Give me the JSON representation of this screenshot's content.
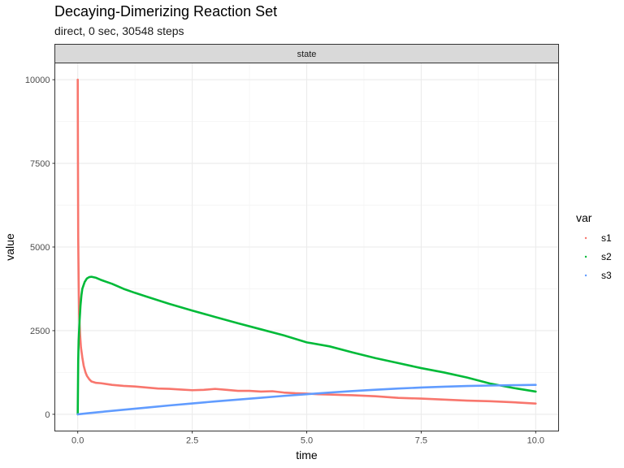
{
  "chart_data": {
    "type": "line",
    "title": "Decaying-Dimerizing Reaction Set",
    "subtitle": "direct, 0 sec, 30548 steps",
    "facet_label": "state",
    "xlabel": "time",
    "ylabel": "value",
    "xlim": [
      -0.5,
      10.5
    ],
    "ylim": [
      -500,
      10500
    ],
    "x_ticks": [
      0,
      2.5,
      5,
      7.5,
      10
    ],
    "x_tick_labels": [
      "0.0",
      "2.5",
      "5.0",
      "7.5",
      "10.0"
    ],
    "y_ticks": [
      0,
      2500,
      5000,
      7500,
      10000
    ],
    "y_tick_labels": [
      "0",
      "2500",
      "5000",
      "7500",
      "10000"
    ],
    "grid": true,
    "legend": {
      "title": "var",
      "position": "right"
    },
    "series": [
      {
        "name": "s1",
        "color": "#F8766D",
        "x": [
          0,
          0.005,
          0.01,
          0.02,
          0.03,
          0.05,
          0.07,
          0.1,
          0.13,
          0.17,
          0.2,
          0.25,
          0.3,
          0.4,
          0.5,
          0.75,
          1.0,
          1.25,
          1.5,
          1.75,
          2.0,
          2.25,
          2.5,
          2.75,
          3.0,
          3.25,
          3.5,
          3.75,
          4.0,
          4.25,
          4.5,
          4.75,
          5.0,
          5.25,
          5.5,
          5.75,
          6.0,
          6.5,
          7.0,
          7.5,
          8.0,
          8.5,
          9.0,
          9.5,
          10.0
        ],
        "y": [
          10000,
          7500,
          5300,
          4000,
          3000,
          2400,
          2000,
          1700,
          1450,
          1250,
          1150,
          1050,
          980,
          940,
          930,
          880,
          850,
          830,
          800,
          770,
          760,
          740,
          720,
          730,
          760,
          730,
          700,
          700,
          680,
          690,
          650,
          630,
          620,
          600,
          590,
          580,
          570,
          540,
          490,
          470,
          440,
          410,
          390,
          360,
          320
        ]
      },
      {
        "name": "s2",
        "color": "#00BA38",
        "x": [
          0,
          0.01,
          0.02,
          0.04,
          0.06,
          0.08,
          0.1,
          0.15,
          0.2,
          0.25,
          0.3,
          0.4,
          0.5,
          0.75,
          1.0,
          1.25,
          1.5,
          2.0,
          2.5,
          3.0,
          3.5,
          4.0,
          4.5,
          5.0,
          5.5,
          6.0,
          6.5,
          7.0,
          7.5,
          8.0,
          8.5,
          9.0,
          9.5,
          10.0
        ],
        "y": [
          0,
          1600,
          2200,
          2800,
          3250,
          3550,
          3750,
          3950,
          4060,
          4100,
          4110,
          4080,
          4020,
          3900,
          3750,
          3630,
          3520,
          3300,
          3100,
          2910,
          2720,
          2540,
          2360,
          2150,
          2030,
          1850,
          1680,
          1530,
          1380,
          1250,
          1100,
          920,
          790,
          680
        ]
      },
      {
        "name": "s3",
        "color": "#619CFF",
        "x": [
          0,
          0.25,
          0.5,
          1.0,
          1.5,
          2.0,
          2.5,
          3.0,
          3.5,
          4.0,
          4.5,
          5.0,
          5.5,
          6.0,
          6.5,
          7.0,
          7.5,
          8.0,
          8.5,
          9.0,
          9.5,
          10.0
        ],
        "y": [
          0,
          35,
          70,
          135,
          200,
          265,
          325,
          385,
          440,
          495,
          550,
          600,
          650,
          695,
          735,
          770,
          800,
          825,
          845,
          860,
          870,
          880
        ]
      }
    ]
  }
}
